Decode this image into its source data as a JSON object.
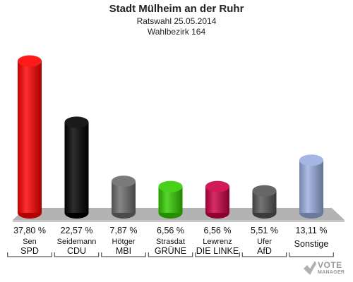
{
  "header": {
    "title": "Stadt Mülheim an der Ruhr",
    "subtitle": "Ratswahl 25.05.2014",
    "district": "Wahlbezirk 164"
  },
  "logo": {
    "line1": "VOTE",
    "line2": "MANAGER"
  },
  "chart_data": {
    "type": "bar",
    "title": "Stadt Mülheim an der Ruhr",
    "subtitle": "Ratswahl 25.05.2014 / Wahlbezirk 164",
    "categories": [
      "SPD",
      "CDU",
      "MBI",
      "GRÜNE",
      "DIE LINKE",
      "AfD",
      "Sonstige"
    ],
    "candidates": [
      "Sen",
      "Seidemann",
      "Hötger",
      "Strasdat",
      "Lewrenz",
      "Ufer",
      ""
    ],
    "values": [
      37.8,
      22.57,
      7.87,
      6.56,
      6.56,
      5.51,
      13.11
    ],
    "value_labels": [
      "37,80 %",
      "22,57 %",
      "7,87 %",
      "6,56 %",
      "6,56 %",
      "5,51 %",
      "13,11 %"
    ],
    "colors": [
      "#ff0000",
      "#000000",
      "#6b6b6b",
      "#33cc00",
      "#cc0044",
      "#555555",
      "#9aaee0"
    ],
    "ylim": [
      0,
      40
    ],
    "grid": false,
    "legend": "none"
  }
}
